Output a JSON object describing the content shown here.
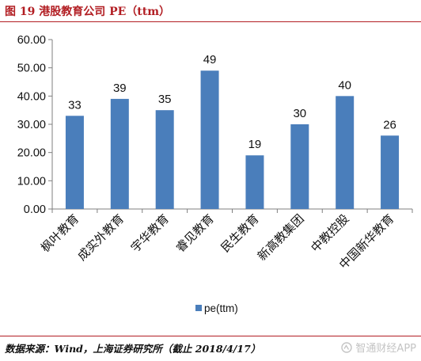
{
  "figure": {
    "title": "图 19  港股教育公司 PE（ttm）",
    "source": "数据来源：Wind，上海证券研究所（截止 2018/4/17）",
    "watermark": "智通财经APP",
    "watermark_icon": "watermark-logo-icon"
  },
  "chart_data": {
    "type": "bar",
    "categories": [
      "枫叶教育",
      "成实外教育",
      "宇华教育",
      "睿见教育",
      "民生教育",
      "新高教集团",
      "中教控股",
      "中国新华教育"
    ],
    "series": [
      {
        "name": "pe(ttm)",
        "values": [
          33,
          39,
          35,
          49,
          19,
          30,
          40,
          26
        ],
        "color": "#4a7ebb"
      }
    ],
    "data_labels": [
      "33",
      "39",
      "35",
      "49",
      "19",
      "30",
      "40",
      "26"
    ],
    "ylim": [
      0,
      60
    ],
    "yticks": [
      "0.00",
      "10.00",
      "20.00",
      "30.00",
      "40.00",
      "50.00",
      "60.00"
    ],
    "grid": false,
    "legend": "bottom-center",
    "xlabel": "",
    "ylabel": ""
  }
}
